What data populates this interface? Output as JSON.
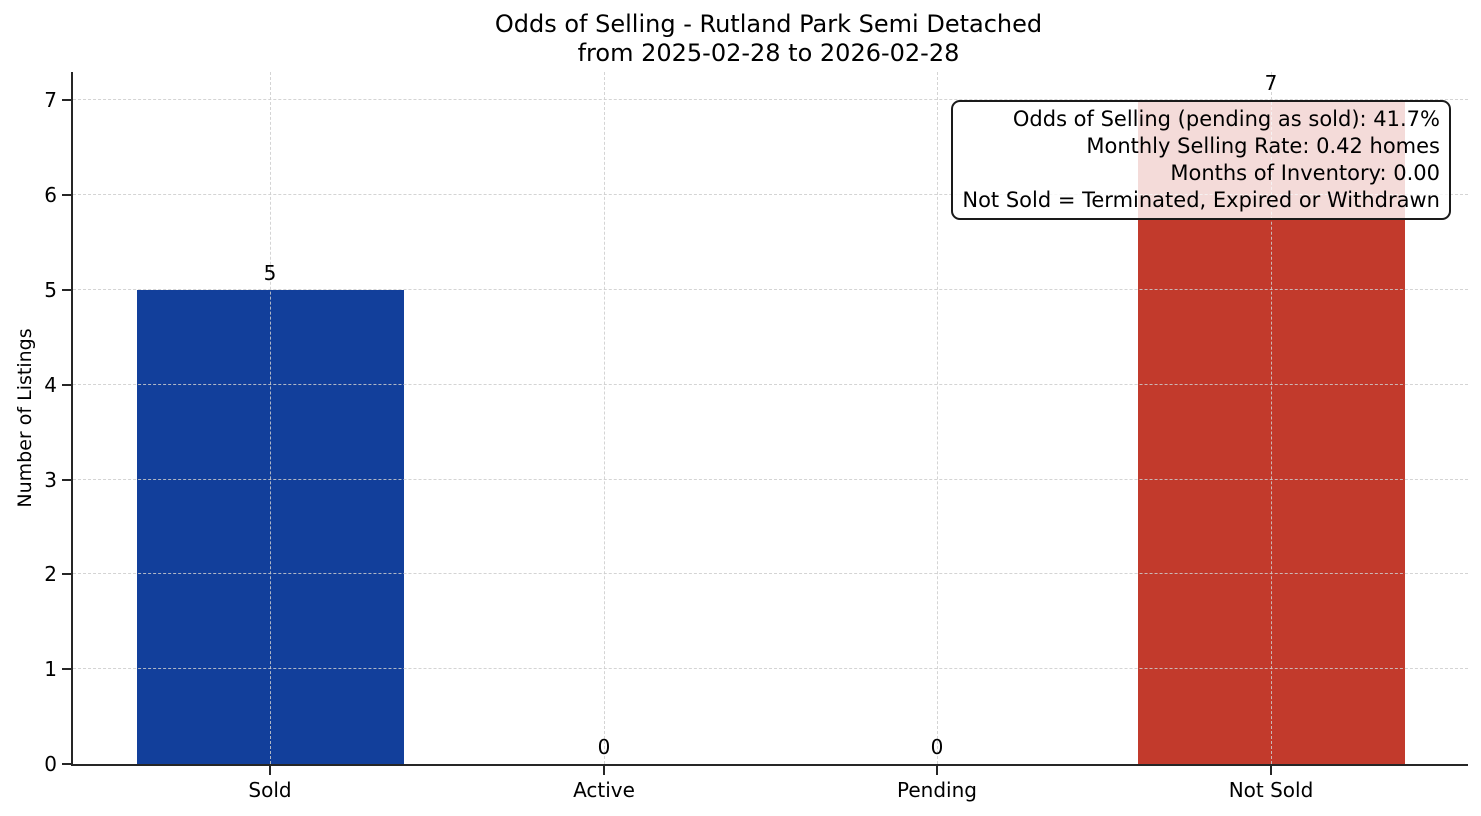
{
  "chart_data": {
    "type": "bar",
    "title_line1": "Odds of Selling - Rutland Park Semi Detached",
    "title_line2": "from 2025-02-28 to 2026-02-28",
    "categories": [
      "Sold",
      "Active",
      "Pending",
      "Not Sold"
    ],
    "values": [
      5,
      0,
      0,
      7
    ],
    "bar_value_labels": [
      "5",
      "0",
      "0",
      "7"
    ],
    "ylabel": "Number of Listings",
    "xlabel": "",
    "yticks": [
      0,
      1,
      2,
      3,
      4,
      5,
      6,
      7
    ],
    "ylim": [
      0,
      7.3
    ],
    "grid": {
      "visible": true,
      "style": "dashed",
      "axes": "both",
      "drawn_over_bars": true
    },
    "legend": "none",
    "annotation": {
      "lines": [
        "Odds of Selling (pending as sold): 41.7%",
        "Monthly Selling Rate: 0.42 homes",
        "Months of Inventory: 0.00",
        "Not Sold = Terminated, Expired or Withdrawn"
      ]
    },
    "colors": {
      "sold_bar": "#123f9b",
      "not_sold_bar": "#c23a2c",
      "bar_color_by_category": {
        "Sold": "#123f9b",
        "Not Sold": "#c23a2c"
      },
      "grid_line": "#cdcdcd",
      "axis_spine": "#262626",
      "text": "#000000",
      "annotation_border": "#1a1a1a",
      "annotation_background": "rgba(255,255,255,0.82)"
    }
  }
}
